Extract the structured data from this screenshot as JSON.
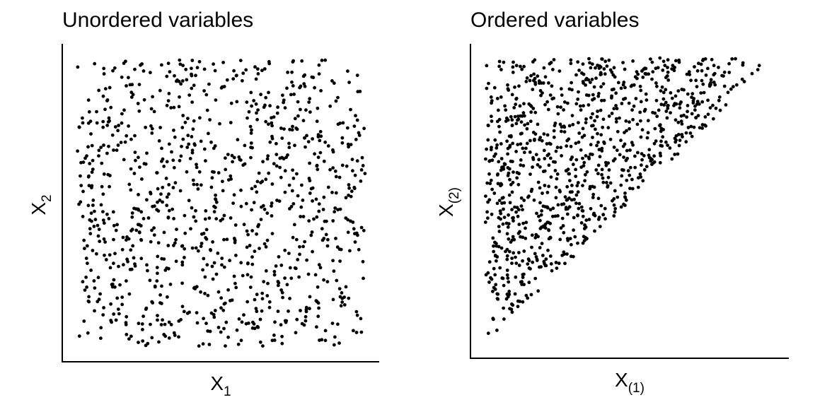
{
  "chart_data": [
    {
      "type": "scatter",
      "title": "Unordered variables",
      "xlabel": {
        "main": "X",
        "sub": "1"
      },
      "ylabel": {
        "main": "X",
        "sub": "2"
      },
      "xlim": [
        0,
        1
      ],
      "ylim": [
        0,
        1
      ],
      "x_ticks": [],
      "y_ticks": [],
      "grid": false,
      "legend": "none",
      "point_color": "#000000",
      "n_points": 1000,
      "distribution": "independent uniform(0,1) pairs",
      "constraint": "none",
      "seed": 101
    },
    {
      "type": "scatter",
      "title": "Ordered variables",
      "xlabel": {
        "main": "X",
        "sub": "(1)"
      },
      "ylabel": {
        "main": "X",
        "sub": "(2)"
      },
      "xlim": [
        0,
        1
      ],
      "ylim": [
        0,
        1
      ],
      "x_ticks": [],
      "y_ticks": [],
      "grid": false,
      "legend": "none",
      "point_color": "#000000",
      "n_points": 1000,
      "distribution": "order statistics of two uniform(0,1) draws",
      "constraint": "X(1) <= X(2)",
      "seed": 101
    }
  ]
}
